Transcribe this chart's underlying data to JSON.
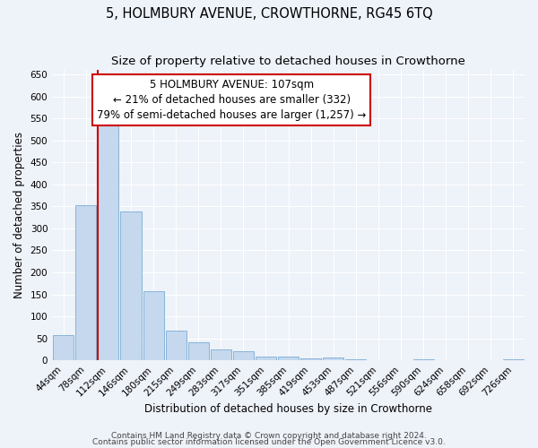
{
  "title": "5, HOLMBURY AVENUE, CROWTHORNE, RG45 6TQ",
  "subtitle": "Size of property relative to detached houses in Crowthorne",
  "xlabel": "Distribution of detached houses by size in Crowthorne",
  "ylabel": "Number of detached properties",
  "bar_labels": [
    "44sqm",
    "78sqm",
    "112sqm",
    "146sqm",
    "180sqm",
    "215sqm",
    "249sqm",
    "283sqm",
    "317sqm",
    "351sqm",
    "385sqm",
    "419sqm",
    "453sqm",
    "487sqm",
    "521sqm",
    "556sqm",
    "590sqm",
    "624sqm",
    "658sqm",
    "692sqm",
    "726sqm"
  ],
  "bar_values": [
    57,
    352,
    545,
    338,
    157,
    68,
    42,
    25,
    20,
    8,
    8,
    5,
    7,
    2,
    1,
    1,
    2,
    1,
    1,
    1,
    2
  ],
  "bar_color": "#c5d8ee",
  "bar_edge_color": "#7aadd4",
  "vline_color": "#cc0000",
  "annotation_title": "5 HOLMBURY AVENUE: 107sqm",
  "annotation_line1": "← 21% of detached houses are smaller (332)",
  "annotation_line2": "79% of semi-detached houses are larger (1,257) →",
  "annotation_box_facecolor": "#ffffff",
  "annotation_box_edgecolor": "#cc0000",
  "ylim": [
    0,
    660
  ],
  "yticks": [
    0,
    50,
    100,
    150,
    200,
    250,
    300,
    350,
    400,
    450,
    500,
    550,
    600,
    650
  ],
  "footer1": "Contains HM Land Registry data © Crown copyright and database right 2024.",
  "footer2": "Contains public sector information licensed under the Open Government Licence v3.0.",
  "background_color": "#eef2f9",
  "grid_color": "#ffffff",
  "title_fontsize": 10.5,
  "subtitle_fontsize": 9.5,
  "axis_label_fontsize": 8.5,
  "tick_fontsize": 7.5,
  "annotation_fontsize": 8.5,
  "footer_fontsize": 6.5
}
